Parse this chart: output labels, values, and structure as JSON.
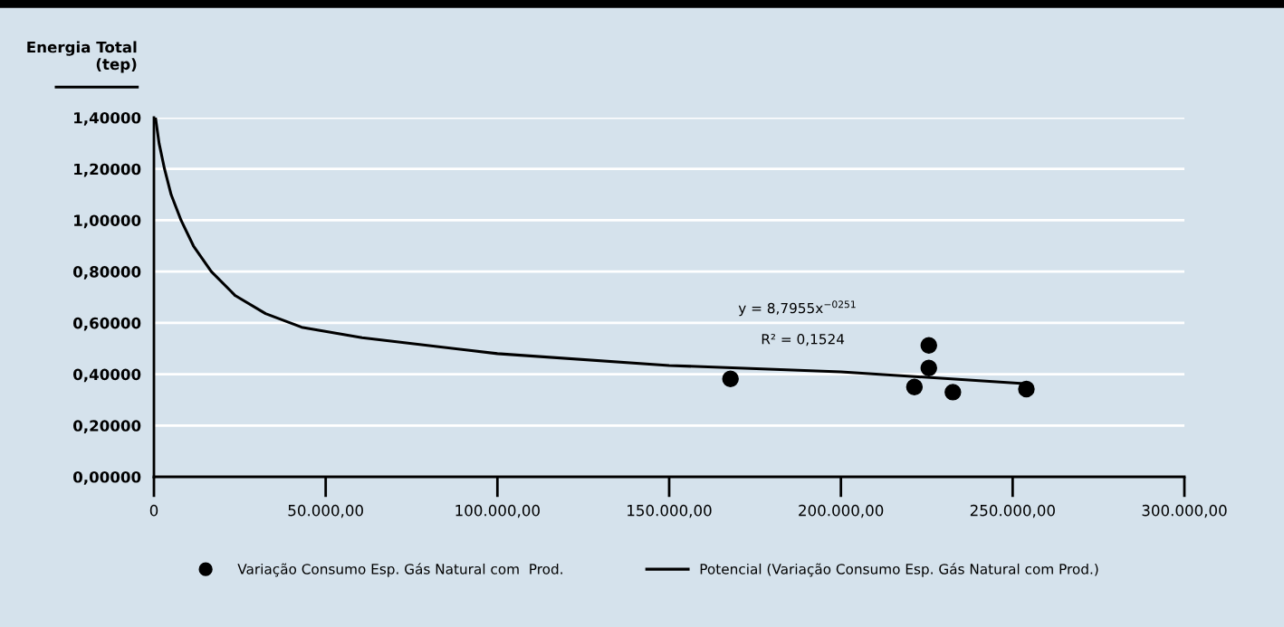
{
  "chart_data": {
    "type": "scatter",
    "ylabel": "Energia Total\n(tep)",
    "series": [
      {
        "name": "Variação Consumo Esp. Gás Natural com  Prod.",
        "color": "#000000",
        "marker": "circle",
        "x": [
          167850,
          221400,
          225600,
          225600,
          232600,
          254000
        ],
        "values": [
          0.382,
          0.35,
          0.512,
          0.424,
          0.33,
          0.342
        ]
      },
      {
        "name": "Potencial (Variação Consumo Esp. Gás Natural com Prod.)",
        "type": "line",
        "color": "#000000",
        "marker": "none",
        "line_style": "solid",
        "x": [
          450,
          1500,
          3080,
          5000,
          7900,
          11500,
          16700,
          23700,
          32500,
          43000,
          60600,
          100000,
          150000,
          200000,
          254000
        ],
        "values": [
          1.4,
          1.3,
          1.2,
          1.1,
          1.0,
          0.9,
          0.8,
          0.706,
          0.636,
          0.583,
          0.542,
          0.48,
          0.434,
          0.409,
          0.363
        ]
      }
    ],
    "annotations": [
      "y = 8,7955x$^{−0251}$",
      "R² = 0,1524"
    ],
    "xlim": [
      0,
      300000
    ],
    "xticks": [
      {
        "value": 0,
        "label": "0"
      },
      {
        "value": 50000,
        "label": "50.000,00"
      },
      {
        "value": 100000,
        "label": "100.000,00"
      },
      {
        "value": 150000,
        "label": "150.000,00"
      },
      {
        "value": 200000,
        "label": "200.000,00"
      },
      {
        "value": 250000,
        "label": "250.000,00"
      },
      {
        "value": 300000,
        "label": "300.000,00"
      }
    ],
    "ylim": [
      0,
      1.4
    ],
    "yticks": [
      {
        "value": 0,
        "label": "0,00000"
      },
      {
        "value": 0.2,
        "label": "0,20000"
      },
      {
        "value": 0.4,
        "label": "0,40000"
      },
      {
        "value": 0.6,
        "label": "0,60000"
      },
      {
        "value": 0.8,
        "label": "0,80000"
      },
      {
        "value": 1.0,
        "label": "1,00000"
      },
      {
        "value": 1.2,
        "label": "1,20000"
      },
      {
        "value": 1.4,
        "label": "1,40000"
      }
    ],
    "grid": "y",
    "legend": "bottom"
  }
}
